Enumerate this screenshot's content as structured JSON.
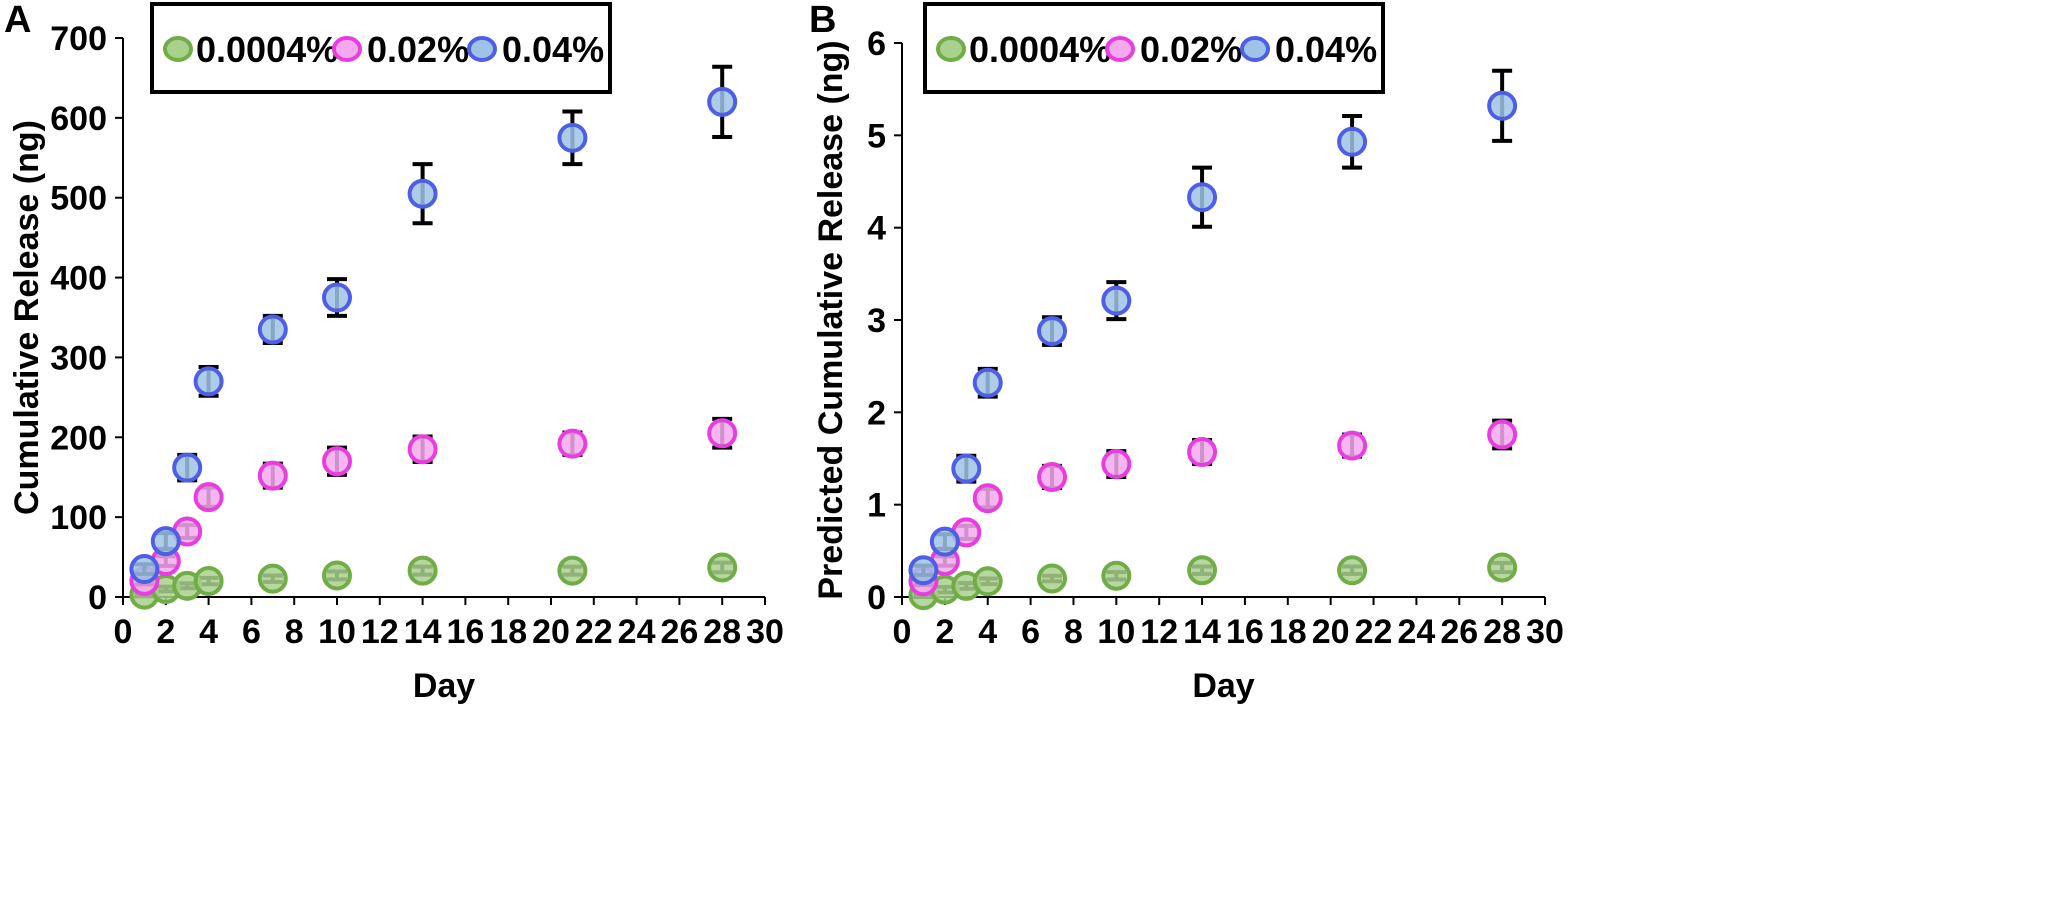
{
  "chart_data": [
    {
      "panel": "A",
      "type": "scatter",
      "xlabel": "Day",
      "ylabel": "Cumulative Release (ng)",
      "xlim": [
        0,
        30
      ],
      "ylim": [
        0,
        700
      ],
      "xticks": [
        "0",
        "2",
        "4",
        "6",
        "8",
        "10",
        "12",
        "14",
        "16",
        "18",
        "20",
        "22",
        "24",
        "26",
        "28",
        "30"
      ],
      "yticks": [
        "0",
        "100",
        "200",
        "300",
        "400",
        "500",
        "600",
        "700"
      ],
      "legend_position": "top-center",
      "series": [
        {
          "name": "0.0004%",
          "color": "#70ad47",
          "fill": "#a9d18e",
          "x": [
            1,
            2,
            3,
            4,
            7,
            10,
            14,
            21,
            28
          ],
          "y": [
            3,
            10,
            14,
            20,
            23,
            27,
            33,
            33,
            37
          ],
          "err": [
            2,
            3,
            3,
            4,
            4,
            5,
            5,
            5,
            6
          ]
        },
        {
          "name": "0.02%",
          "color": "#e83ee0",
          "fill": "#f4a9ef",
          "x": [
            1,
            2,
            3,
            4,
            7,
            10,
            14,
            21,
            28
          ],
          "y": [
            20,
            45,
            82,
            125,
            152,
            170,
            185,
            192,
            205
          ],
          "err": [
            4,
            6,
            8,
            12,
            15,
            17,
            16,
            14,
            18
          ]
        },
        {
          "name": "0.04%",
          "color": "#4f5ee6",
          "fill": "#9dc3e6",
          "x": [
            1,
            2,
            3,
            4,
            7,
            10,
            14,
            21,
            28
          ],
          "y": [
            35,
            70,
            162,
            270,
            335,
            375,
            505,
            575,
            620
          ],
          "err": [
            6,
            10,
            16,
            18,
            17,
            23,
            37,
            33,
            44
          ]
        }
      ]
    },
    {
      "panel": "B",
      "type": "scatter",
      "xlabel": "Day",
      "ylabel": "Predicted Cumulative Release (ng)",
      "xlim": [
        0,
        30
      ],
      "ylim": [
        0,
        6
      ],
      "xticks": [
        "0",
        "2",
        "4",
        "6",
        "8",
        "10",
        "12",
        "14",
        "16",
        "18",
        "20",
        "22",
        "24",
        "26",
        "28",
        "30"
      ],
      "yticks": [
        "0",
        "1",
        "2",
        "3",
        "4",
        "5",
        "6"
      ],
      "legend_position": "top-center",
      "series": [
        {
          "name": "0.0004%",
          "color": "#70ad47",
          "fill": "#a9d18e",
          "x": [
            1,
            2,
            3,
            4,
            7,
            10,
            14,
            21,
            28
          ],
          "y": [
            0.02,
            0.08,
            0.12,
            0.17,
            0.2,
            0.23,
            0.29,
            0.29,
            0.32
          ],
          "err": [
            0.02,
            0.03,
            0.03,
            0.03,
            0.03,
            0.04,
            0.04,
            0.04,
            0.05
          ]
        },
        {
          "name": "0.02%",
          "color": "#e83ee0",
          "fill": "#f4a9ef",
          "x": [
            1,
            2,
            3,
            4,
            7,
            10,
            14,
            21,
            28
          ],
          "y": [
            0.17,
            0.39,
            0.7,
            1.07,
            1.3,
            1.44,
            1.57,
            1.64,
            1.76
          ],
          "err": [
            0.04,
            0.05,
            0.07,
            0.1,
            0.12,
            0.14,
            0.13,
            0.12,
            0.15
          ]
        },
        {
          "name": "0.04%",
          "color": "#4f5ee6",
          "fill": "#9dc3e6",
          "x": [
            1,
            2,
            3,
            4,
            7,
            10,
            14,
            21,
            28
          ],
          "y": [
            0.29,
            0.6,
            1.39,
            2.32,
            2.88,
            3.21,
            4.33,
            4.93,
            5.32
          ],
          "err": [
            0.05,
            0.08,
            0.14,
            0.15,
            0.15,
            0.2,
            0.32,
            0.28,
            0.38
          ]
        }
      ]
    }
  ]
}
